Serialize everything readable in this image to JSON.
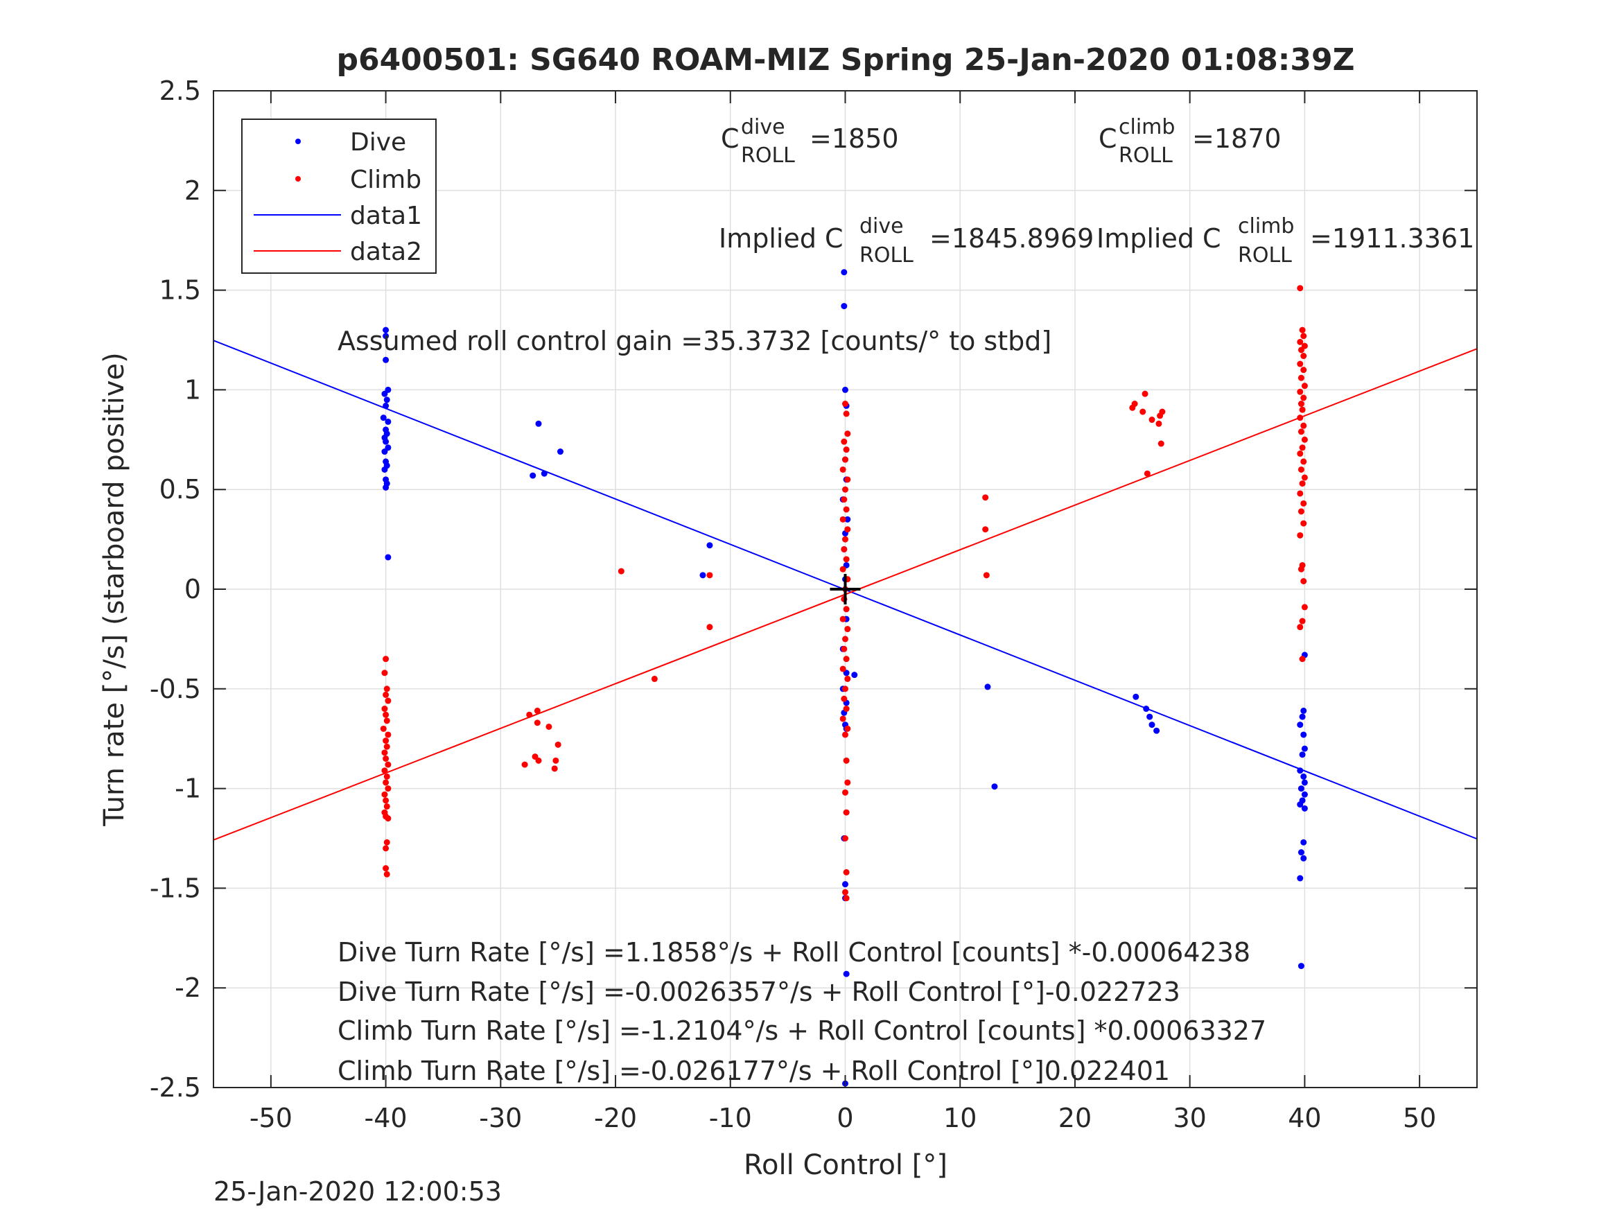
{
  "chart_data": {
    "type": "scatter",
    "title": "p6400501: SG640 ROAM-MIZ Spring 25-Jan-2020 01:08:39Z",
    "xlabel": "Roll Control [°]",
    "ylabel": "Turn rate [°/s] (starboard positive)",
    "xlim": [
      -55,
      55
    ],
    "ylim": [
      -2.5,
      2.5
    ],
    "xticks": [
      -50,
      -40,
      -30,
      -20,
      -10,
      0,
      10,
      20,
      30,
      40,
      50
    ],
    "yticks": [
      -2.5,
      -2,
      -1.5,
      -1,
      -0.5,
      0,
      0.5,
      1,
      1.5,
      2,
      2.5
    ],
    "xtick_labels": [
      "-50",
      "-40",
      "-30",
      "-20",
      "-10",
      "0",
      "10",
      "20",
      "30",
      "40",
      "50"
    ],
    "ytick_labels": [
      "-2.5",
      "-2",
      "-1.5",
      "-1",
      "-0.5",
      "0",
      "0.5",
      "1",
      "1.5",
      "2",
      "2.5"
    ],
    "grid": true,
    "legend_position": "top-left",
    "colors": {
      "dive": "#0000ff",
      "climb": "#ff0000",
      "axis": "#262626",
      "grid": "#dfdfdf"
    },
    "series": [
      {
        "name": "Dive",
        "kind": "points",
        "color": "#0000ff",
        "points": [
          [
            -40,
            1.3
          ],
          [
            -40,
            1.27
          ],
          [
            -40,
            1.15
          ],
          [
            -39.8,
            1.0
          ],
          [
            -40.1,
            0.98
          ],
          [
            -39.9,
            0.95
          ],
          [
            -40,
            0.92
          ],
          [
            -40.2,
            0.86
          ],
          [
            -39.8,
            0.84
          ],
          [
            -40,
            0.8
          ],
          [
            -39.9,
            0.78
          ],
          [
            -40.1,
            0.76
          ],
          [
            -40,
            0.74
          ],
          [
            -39.8,
            0.71
          ],
          [
            -40.1,
            0.69
          ],
          [
            -40,
            0.64
          ],
          [
            -39.9,
            0.62
          ],
          [
            -40.1,
            0.6
          ],
          [
            -40,
            0.55
          ],
          [
            -39.9,
            0.53
          ],
          [
            -40,
            0.51
          ],
          [
            -39.8,
            0.16
          ],
          [
            -26.7,
            0.83
          ],
          [
            -24.8,
            0.69
          ],
          [
            -26.2,
            0.58
          ],
          [
            -27.2,
            0.57
          ],
          [
            -11.8,
            0.22
          ],
          [
            -12.4,
            0.07
          ],
          [
            -0.1,
            1.59
          ],
          [
            -0.1,
            1.42
          ],
          [
            0,
            1.0
          ],
          [
            0.1,
            0.92
          ],
          [
            0,
            0.65
          ],
          [
            0.1,
            0.55
          ],
          [
            -0.2,
            0.45
          ],
          [
            0.2,
            0.35
          ],
          [
            0,
            0.28
          ],
          [
            -0.1,
            0.2
          ],
          [
            0.1,
            0.12
          ],
          [
            0,
            0.05
          ],
          [
            -0.1,
            -0.05
          ],
          [
            0.1,
            -0.15
          ],
          [
            -0.2,
            -0.3
          ],
          [
            0.1,
            -0.42
          ],
          [
            0.8,
            -0.43
          ],
          [
            -0.2,
            -0.5
          ],
          [
            0.1,
            -0.57
          ],
          [
            -0.1,
            -0.62
          ],
          [
            0,
            -0.68
          ],
          [
            0.1,
            -0.7
          ],
          [
            -0.1,
            -1.25
          ],
          [
            0,
            -1.48
          ],
          [
            0,
            -1.55
          ],
          [
            0.1,
            -1.93
          ],
          [
            0,
            -2.48
          ],
          [
            12.4,
            -0.49
          ],
          [
            13,
            -0.99
          ],
          [
            25.3,
            -0.54
          ],
          [
            26.2,
            -0.6
          ],
          [
            26.5,
            -0.64
          ],
          [
            26.7,
            -0.68
          ],
          [
            27.1,
            -0.71
          ],
          [
            40,
            -0.33
          ],
          [
            39.9,
            -0.61
          ],
          [
            39.8,
            -0.64
          ],
          [
            39.6,
            -0.68
          ],
          [
            39.9,
            -0.73
          ],
          [
            40,
            -0.8
          ],
          [
            39.8,
            -0.83
          ],
          [
            39.6,
            -0.91
          ],
          [
            39.9,
            -0.94
          ],
          [
            40,
            -0.97
          ],
          [
            39.7,
            -1.0
          ],
          [
            40,
            -1.03
          ],
          [
            39.8,
            -1.06
          ],
          [
            39.6,
            -1.08
          ],
          [
            40,
            -1.1
          ],
          [
            39.9,
            -1.27
          ],
          [
            39.7,
            -1.32
          ],
          [
            39.9,
            -1.35
          ],
          [
            39.6,
            -1.45
          ],
          [
            39.7,
            -1.89
          ]
        ]
      },
      {
        "name": "Climb",
        "kind": "points",
        "color": "#ff0000",
        "points": [
          [
            -40,
            -0.35
          ],
          [
            -40.1,
            -0.42
          ],
          [
            -39.9,
            -0.5
          ],
          [
            -40,
            -0.53
          ],
          [
            -39.8,
            -0.56
          ],
          [
            -40.1,
            -0.6
          ],
          [
            -40,
            -0.63
          ],
          [
            -39.9,
            -0.66
          ],
          [
            -40.2,
            -0.7
          ],
          [
            -39.8,
            -0.73
          ],
          [
            -40,
            -0.76
          ],
          [
            -39.9,
            -0.79
          ],
          [
            -40.1,
            -0.82
          ],
          [
            -40,
            -0.85
          ],
          [
            -39.8,
            -0.88
          ],
          [
            -40.1,
            -0.91
          ],
          [
            -39.9,
            -0.94
          ],
          [
            -40,
            -0.97
          ],
          [
            -39.8,
            -1.0
          ],
          [
            -40.1,
            -1.03
          ],
          [
            -40,
            -1.06
          ],
          [
            -39.9,
            -1.09
          ],
          [
            -40.1,
            -1.12
          ],
          [
            -40,
            -1.14
          ],
          [
            -39.8,
            -1.15
          ],
          [
            -39.9,
            -1.27
          ],
          [
            -40,
            -1.3
          ],
          [
            -40,
            -1.4
          ],
          [
            -39.9,
            -1.43
          ],
          [
            -26.8,
            -0.61
          ],
          [
            -27.5,
            -0.63
          ],
          [
            -25.8,
            -0.69
          ],
          [
            -26.8,
            -0.67
          ],
          [
            -25,
            -0.78
          ],
          [
            -27,
            -0.84
          ],
          [
            -26.7,
            -0.86
          ],
          [
            -25.2,
            -0.86
          ],
          [
            -27.9,
            -0.88
          ],
          [
            -25.3,
            -0.9
          ],
          [
            -19.5,
            0.09
          ],
          [
            -11.8,
            0.07
          ],
          [
            -11.8,
            -0.19
          ],
          [
            -16.6,
            -0.45
          ],
          [
            0,
            0.93
          ],
          [
            0.1,
            0.88
          ],
          [
            0.2,
            0.78
          ],
          [
            -0.1,
            0.74
          ],
          [
            0.1,
            0.7
          ],
          [
            0,
            0.65
          ],
          [
            -0.2,
            0.6
          ],
          [
            0.2,
            0.55
          ],
          [
            0,
            0.5
          ],
          [
            -0.1,
            0.45
          ],
          [
            0.1,
            0.4
          ],
          [
            -0.2,
            0.35
          ],
          [
            0.2,
            0.3
          ],
          [
            0,
            0.25
          ],
          [
            -0.1,
            0.2
          ],
          [
            0.1,
            0.15
          ],
          [
            -0.2,
            0.1
          ],
          [
            0.2,
            0.05
          ],
          [
            0,
            0.0
          ],
          [
            -0.1,
            -0.05
          ],
          [
            0.1,
            -0.1
          ],
          [
            -0.2,
            -0.15
          ],
          [
            0.2,
            -0.2
          ],
          [
            0,
            -0.25
          ],
          [
            -0.1,
            -0.3
          ],
          [
            0.1,
            -0.35
          ],
          [
            -0.2,
            -0.4
          ],
          [
            0.2,
            -0.45
          ],
          [
            0,
            -0.5
          ],
          [
            -0.1,
            -0.55
          ],
          [
            0.1,
            -0.6
          ],
          [
            -0.2,
            -0.65
          ],
          [
            0.2,
            -0.7
          ],
          [
            0,
            -0.73
          ],
          [
            0.1,
            -0.86
          ],
          [
            0.2,
            -0.97
          ],
          [
            0,
            -1.02
          ],
          [
            0.1,
            -1.12
          ],
          [
            0,
            -1.25
          ],
          [
            0.1,
            -1.42
          ],
          [
            0,
            -1.52
          ],
          [
            0.1,
            -1.55
          ],
          [
            12.2,
            0.46
          ],
          [
            12.2,
            0.3
          ],
          [
            12.3,
            0.07
          ],
          [
            25,
            0.91
          ],
          [
            25.2,
            0.93
          ],
          [
            26.1,
            0.98
          ],
          [
            25.9,
            0.89
          ],
          [
            26.7,
            0.85
          ],
          [
            27.4,
            0.87
          ],
          [
            27.6,
            0.89
          ],
          [
            27.3,
            0.83
          ],
          [
            27.5,
            0.73
          ],
          [
            26.3,
            0.58
          ],
          [
            39.6,
            1.51
          ],
          [
            39.8,
            1.3
          ],
          [
            39.9,
            1.27
          ],
          [
            39.6,
            1.24
          ],
          [
            40,
            1.22
          ],
          [
            39.7,
            1.2
          ],
          [
            39.9,
            1.17
          ],
          [
            39.6,
            1.13
          ],
          [
            39.9,
            1.1
          ],
          [
            39.7,
            1.06
          ],
          [
            40,
            1.02
          ],
          [
            39.6,
            0.99
          ],
          [
            39.9,
            0.96
          ],
          [
            39.7,
            0.93
          ],
          [
            39.8,
            0.9
          ],
          [
            39.6,
            0.86
          ],
          [
            39.9,
            0.82
          ],
          [
            39.7,
            0.79
          ],
          [
            40,
            0.75
          ],
          [
            39.8,
            0.71
          ],
          [
            39.6,
            0.68
          ],
          [
            39.9,
            0.64
          ],
          [
            39.7,
            0.6
          ],
          [
            40,
            0.56
          ],
          [
            39.8,
            0.53
          ],
          [
            39.6,
            0.48
          ],
          [
            39.9,
            0.43
          ],
          [
            39.7,
            0.39
          ],
          [
            39.9,
            0.33
          ],
          [
            39.6,
            0.27
          ],
          [
            39.8,
            0.12
          ],
          [
            39.7,
            0.1
          ],
          [
            39.9,
            0.04
          ],
          [
            40,
            -0.09
          ],
          [
            39.8,
            -0.16
          ],
          [
            39.6,
            -0.19
          ],
          [
            39.8,
            -0.35
          ]
        ]
      },
      {
        "name": "data1",
        "kind": "line",
        "color": "#0000ff",
        "x": [
          -55,
          55
        ],
        "y": [
          1.2477,
          -1.2526
        ]
      },
      {
        "name": "data2",
        "kind": "line",
        "color": "#ff0000",
        "x": [
          -55,
          55
        ],
        "y": [
          -1.2582,
          1.2059
        ]
      }
    ],
    "annotations": {
      "c_dive_base": "C",
      "c_dive_sup": "dive",
      "c_dive_sub": "ROLL",
      "c_dive_value": "=1850",
      "c_climb_base": "C",
      "c_climb_sup": "climb",
      "c_climb_sub": "ROLL",
      "c_climb_value": "=1870",
      "implied_dive_prefix": "Implied C",
      "implied_dive_sup": "dive",
      "implied_dive_sub": "ROLL",
      "implied_dive_value": "=1845.8969",
      "implied_climb_prefix": "Implied C",
      "implied_climb_sup": "climb",
      "implied_climb_sub": "ROLL",
      "implied_climb_value": "=1911.3361",
      "gain": "Assumed roll control gain =35.3732 [counts/° to stbd]",
      "eq1": "Dive Turn Rate [°/s] =1.1858°/s + Roll Control [counts] *-0.00064238",
      "eq2": "Dive Turn Rate [°/s] =-0.0026357°/s + Roll Control [°]-0.022723",
      "eq3": "Climb Turn Rate [°/s] =-1.2104°/s + Roll Control [counts] *0.00063327",
      "eq4": "Climb Turn Rate [°/s] =-0.026177°/s + Roll Control [°]0.022401"
    },
    "centroid_marker": [
      0,
      0
    ]
  },
  "footer": {
    "timestamp": "25-Jan-2020 12:00:53"
  }
}
